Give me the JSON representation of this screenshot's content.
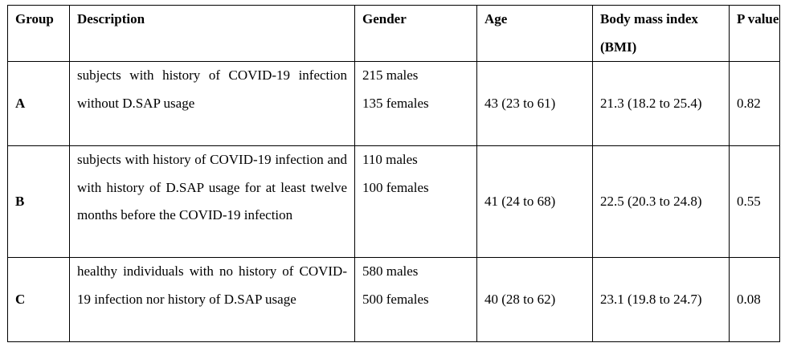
{
  "table": {
    "headers": {
      "group": "Group",
      "description": "Description",
      "gender": "Gender",
      "age": "Age",
      "bmi": "Body mass index (BMI)",
      "p_value": "P value"
    },
    "rows": [
      {
        "group": "A",
        "description": "subjects with history of COVID-19 infection without D.SAP usage",
        "males": "215 males",
        "females": "135 females",
        "age": "43 (23 to 61)",
        "bmi": "21.3 (18.2 to 25.4)",
        "p_value": "0.82"
      },
      {
        "group": "B",
        "description": "subjects with history of COVID-19 infection and with history of D.SAP usage for at least twelve months before the COVID-19 infection",
        "males": "110 males",
        "females": "100 females",
        "age": "41 (24 to 68)",
        "bmi": "22.5 (20.3 to 24.8)",
        "p_value": "0.55"
      },
      {
        "group": "C",
        "description": "healthy individuals with no history of COVID-19 infection nor history of D.SAP usage",
        "males": "580 males",
        "females": "500 females",
        "age": "40 (28 to 62)",
        "bmi": "23.1 (19.8 to 24.7)",
        "p_value": "0.08"
      }
    ]
  }
}
